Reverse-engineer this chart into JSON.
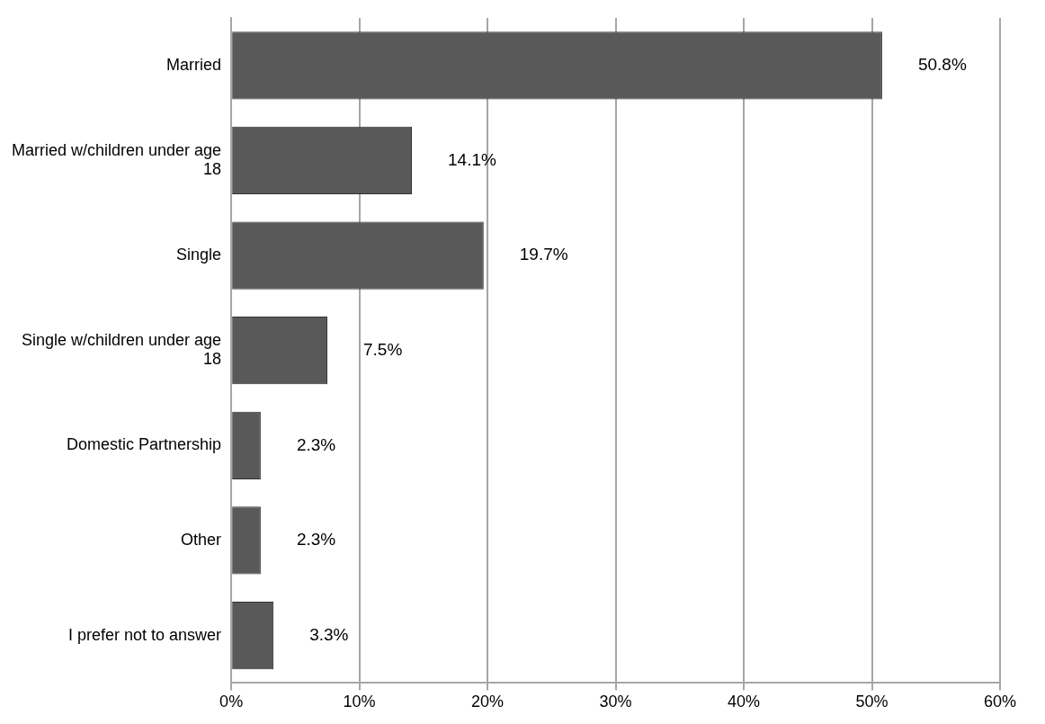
{
  "chart_data": {
    "type": "bar",
    "orientation": "horizontal",
    "categories": [
      "Married",
      "Married w/children under age 18",
      "Single",
      "Single w/children under age 18",
      "Domestic Partnership",
      "Other",
      "I prefer not to answer"
    ],
    "values": [
      50.8,
      14.1,
      19.7,
      7.5,
      2.3,
      2.3,
      3.3
    ],
    "value_labels": [
      "50.8%",
      "14.1%",
      "19.7%",
      "7.5%",
      "2.3%",
      "2.3%",
      "3.3%"
    ],
    "color": "#595959",
    "xlim": [
      0,
      60
    ],
    "xticks": [
      {
        "value": 0,
        "label": "0%"
      },
      {
        "value": 10,
        "label": "10%"
      },
      {
        "value": 20,
        "label": "20%"
      },
      {
        "value": 30,
        "label": "30%"
      },
      {
        "value": 40,
        "label": "40%"
      },
      {
        "value": 50,
        "label": "50%"
      },
      {
        "value": 60,
        "label": "60%"
      }
    ],
    "grid": "x",
    "legend": false
  }
}
